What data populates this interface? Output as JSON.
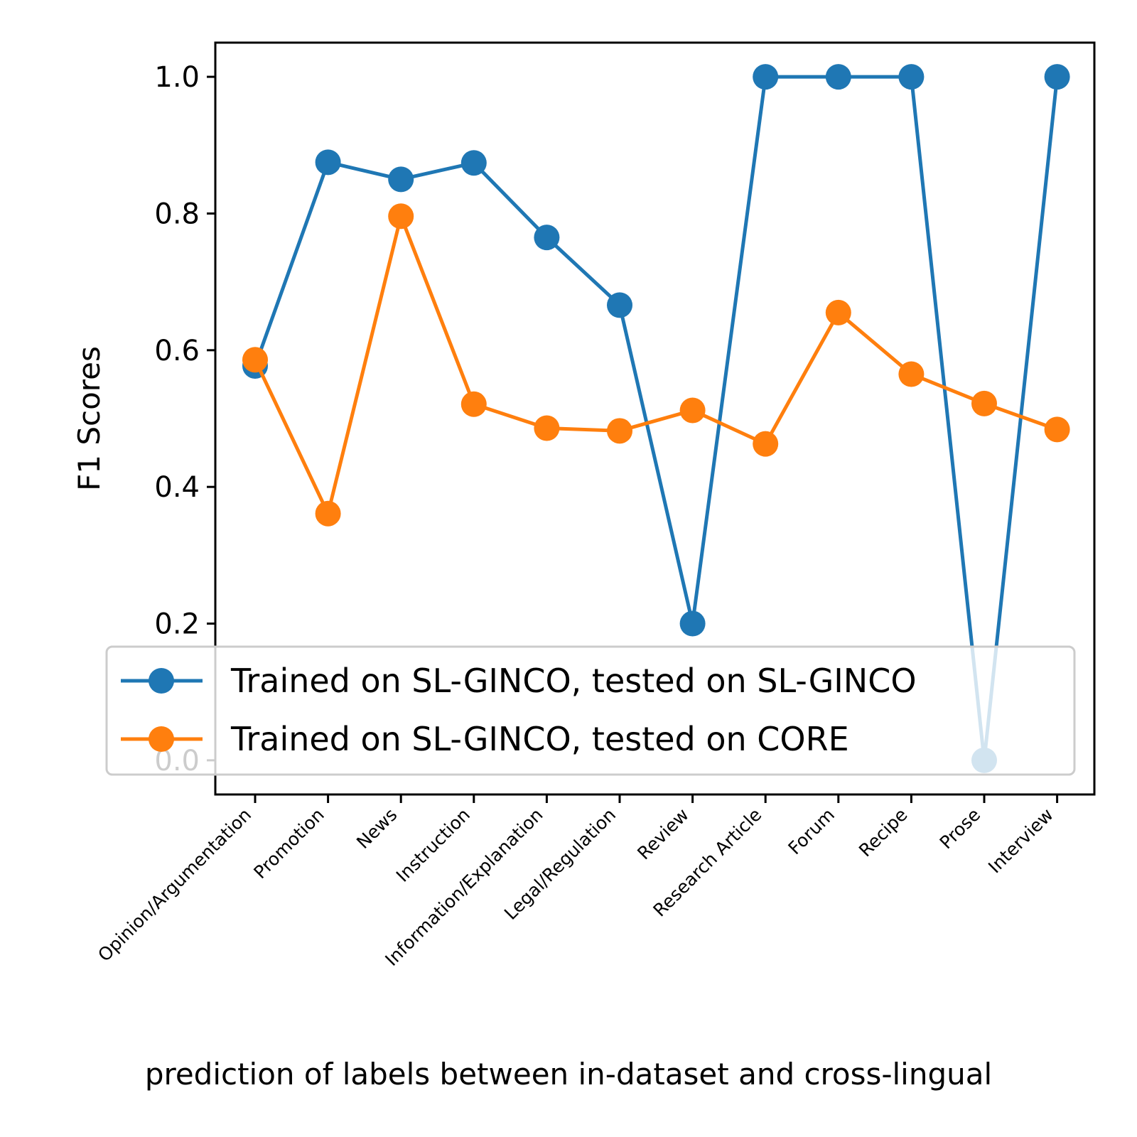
{
  "chart_data": {
    "type": "line",
    "title": "",
    "xlabel": "prediction of labels between in-dataset and cross-lingual",
    "ylabel": "F1 Scores",
    "categories": [
      "Opinion/Argumentation",
      "Promotion",
      "News",
      "Instruction",
      "Information/Explanation",
      "Legal/Regulation",
      "Review",
      "Research Article",
      "Forum",
      "Recipe",
      "Prose",
      "Interview"
    ],
    "ylim": [
      -0.05,
      1.05
    ],
    "yticks": [
      "0.0",
      "0.2",
      "0.4",
      "0.6",
      "0.8",
      "1.0"
    ],
    "ytick_values": [
      0.0,
      0.2,
      0.4,
      0.6,
      0.8,
      1.0
    ],
    "grid": false,
    "legend_position": "lower-right",
    "series": [
      {
        "name": "Trained on SL-GINCO, tested on SL-GINCO",
        "color": "#1f77b4",
        "values": [
          0.577,
          0.875,
          0.85,
          0.874,
          0.765,
          0.666,
          0.2,
          1.0,
          1.0,
          1.0,
          0.0,
          1.0
        ]
      },
      {
        "name": "Trained on SL-GINCO, tested on CORE",
        "color": "#ff7f0e",
        "values": [
          0.586,
          0.361,
          0.796,
          0.521,
          0.486,
          0.482,
          0.512,
          0.463,
          0.655,
          0.565,
          0.522,
          0.484
        ]
      }
    ]
  }
}
